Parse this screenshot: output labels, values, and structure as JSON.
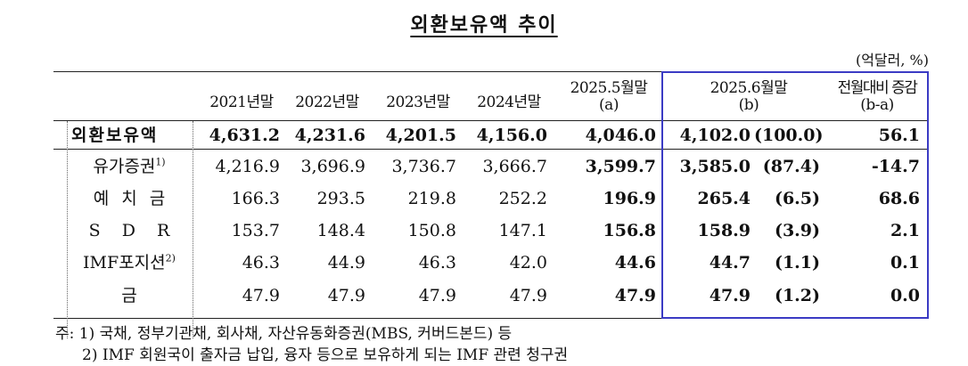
{
  "title": "외환보유액 추이",
  "unit": "(억달러, %)",
  "headers": {
    "y2021": "2021년말",
    "y2022": "2022년말",
    "y2023": "2023년말",
    "y2024": "2024년말",
    "may_top": "2025.5월말",
    "may_bottom": "(a)",
    "jun_top": "2025.6월말",
    "jun_bottom": "(b)",
    "chg_top": "전월대비 증감",
    "chg_bottom": "(b-a)"
  },
  "rows": [
    {
      "label": "외환보유액",
      "sup": "",
      "v2021": "4,631.2",
      "v2022": "4,231.6",
      "v2023": "4,201.5",
      "v2024": "4,156.0",
      "may": "4,046.0",
      "jun": "4,102.0",
      "share": "(100.0)",
      "chg": "56.1"
    },
    {
      "label": "유가증권",
      "sup": "1)",
      "v2021": "4,216.9",
      "v2022": "3,696.9",
      "v2023": "3,736.7",
      "v2024": "3,666.7",
      "may": "3,599.7",
      "jun": "3,585.0",
      "share": "(87.4)",
      "chg": "-14.7"
    },
    {
      "label": "예 치 금",
      "sup": "",
      "v2021": "166.3",
      "v2022": "293.5",
      "v2023": "219.8",
      "v2024": "252.2",
      "may": "196.9",
      "jun": "265.4",
      "share": "(6.5)",
      "chg": "68.6"
    },
    {
      "label": "S D R",
      "sup": "",
      "v2021": "153.7",
      "v2022": "148.4",
      "v2023": "150.8",
      "v2024": "147.1",
      "may": "156.8",
      "jun": "158.9",
      "share": "(3.9)",
      "chg": "2.1"
    },
    {
      "label": "IMF포지션",
      "sup": "2)",
      "v2021": "46.3",
      "v2022": "44.9",
      "v2023": "46.3",
      "v2024": "42.0",
      "may": "44.6",
      "jun": "44.7",
      "share": "(1.1)",
      "chg": "0.1"
    },
    {
      "label": "금",
      "sup": "",
      "v2021": "47.9",
      "v2022": "47.9",
      "v2023": "47.9",
      "v2024": "47.9",
      "may": "47.9",
      "jun": "47.9",
      "share": "(1.2)",
      "chg": "0.0"
    }
  ],
  "notes": [
    "주: 1) 국채, 정부기관채, 회사채, 자산유동화증권(MBS, 커버드본드) 등",
    "2) IMF 회원국이 출자금 납입, 융자 등으로 보유하게 되는 IMF 관련 청구권"
  ]
}
